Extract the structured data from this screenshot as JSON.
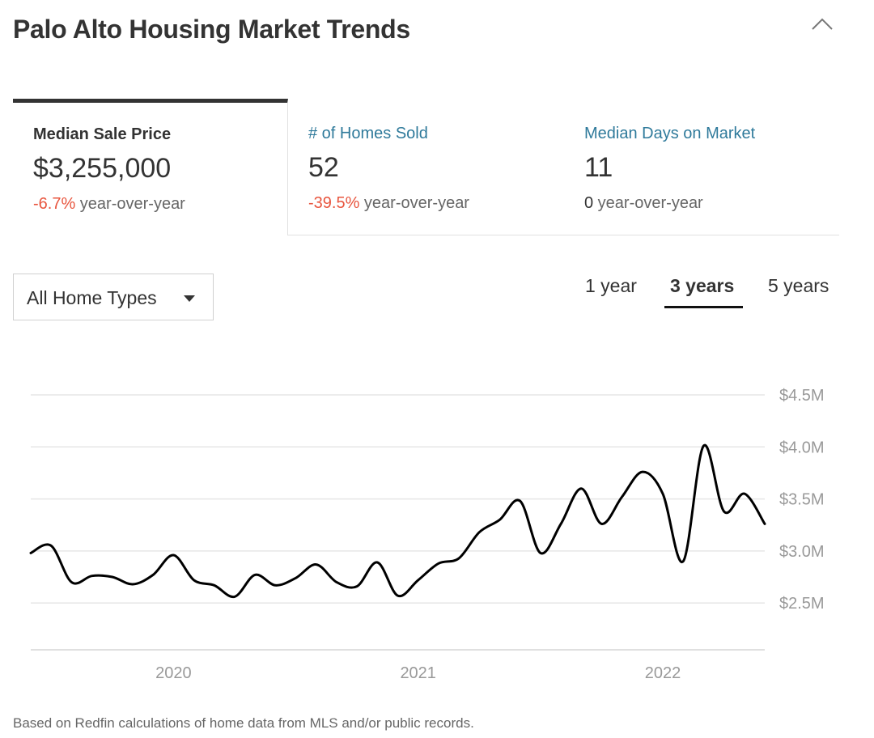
{
  "header": {
    "title": "Palo Alto Housing Market Trends"
  },
  "stats": [
    {
      "label": "Median Sale Price",
      "value": "$3,255,000",
      "change": "-6.7%",
      "change_suffix": " year-over-year",
      "active": true
    },
    {
      "label": "# of Homes Sold",
      "value": "52",
      "change": "-39.5%",
      "change_suffix": " year-over-year",
      "active": false
    },
    {
      "label": "Median Days on Market",
      "value": "11",
      "change": "0",
      "change_suffix": " year-over-year",
      "active": false
    }
  ],
  "filters": {
    "home_type": "All Home Types",
    "ranges": [
      "1 year",
      "3 years",
      "5 years"
    ],
    "selected_range": "3 years"
  },
  "chart_data": {
    "type": "line",
    "series": [
      {
        "x": [
          "2019-06",
          "2019-07",
          "2019-08",
          "2019-09",
          "2019-10",
          "2019-11",
          "2019-12",
          "2020-01",
          "2020-02",
          "2020-03",
          "2020-04",
          "2020-05",
          "2020-06",
          "2020-07",
          "2020-08",
          "2020-09",
          "2020-10",
          "2020-11",
          "2020-12",
          "2021-01",
          "2021-02",
          "2021-03",
          "2021-04",
          "2021-05",
          "2021-06",
          "2021-07",
          "2021-08",
          "2021-09",
          "2021-10",
          "2021-11",
          "2021-12",
          "2022-01",
          "2022-02",
          "2022-03",
          "2022-04",
          "2022-05",
          "2022-06"
        ],
        "values": [
          2.98,
          3.05,
          2.7,
          2.76,
          2.75,
          2.68,
          2.77,
          2.96,
          2.72,
          2.67,
          2.56,
          2.77,
          2.67,
          2.74,
          2.87,
          2.7,
          2.66,
          2.89,
          2.57,
          2.72,
          2.88,
          2.93,
          3.18,
          3.3,
          3.48,
          2.98,
          3.26,
          3.6,
          3.26,
          3.52,
          3.76,
          3.55,
          2.9,
          4.01,
          3.38,
          3.55,
          3.26
        ]
      }
    ],
    "x_ticks": [
      "2020",
      "2021",
      "2022"
    ],
    "y_ticks": [
      "$2.5M",
      "$3.0M",
      "$3.5M",
      "$4.0M",
      "$4.5M"
    ],
    "ylim": [
      2.05,
      4.5
    ],
    "line_color": "#000000"
  },
  "footnote": "Based on Redfin calculations of home data from MLS and/or public records."
}
